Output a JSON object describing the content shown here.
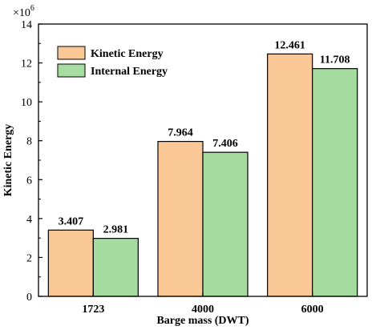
{
  "chart_data": {
    "type": "bar",
    "title": "",
    "xlabel": "Barge mass (DWT)",
    "ylabel": "Kinetic Energy",
    "y_multiplier_label": "×10",
    "y_multiplier_exponent": "6",
    "categories": [
      "1723",
      "4000",
      "6000"
    ],
    "ylim": [
      0,
      14
    ],
    "yticks": [
      0,
      2,
      4,
      6,
      8,
      10,
      12,
      14
    ],
    "legend_position": "top-left",
    "grid": false,
    "series": [
      {
        "name": "Kinetic Energy",
        "color": "#FAC796",
        "values": [
          3.407,
          7.964,
          12.461
        ],
        "labels": [
          "3.407",
          "7.964",
          "12.461"
        ]
      },
      {
        "name": "Internal Energy",
        "color": "#A6DCA0",
        "values": [
          2.981,
          7.406,
          11.708
        ],
        "labels": [
          "2.981",
          "7.406",
          "11.708"
        ]
      }
    ]
  }
}
